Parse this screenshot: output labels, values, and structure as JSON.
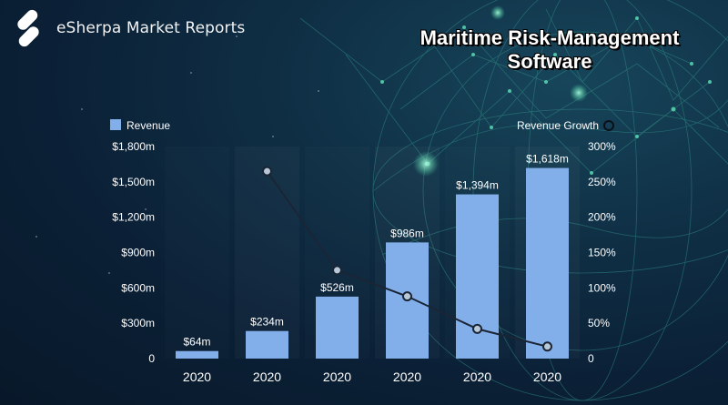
{
  "brand": {
    "name": "eSherpa Market Reports"
  },
  "page_title": {
    "line1": "Maritime Risk-Management",
    "line2": "Software"
  },
  "colors": {
    "bar": "#82aeea",
    "line": "#1a2535",
    "marker": "#b8c8d8",
    "accent_glow": "#7ff0c8"
  },
  "chart_data": {
    "type": "bar",
    "title": "Maritime Risk-Management Software",
    "categories": [
      "2020",
      "2020",
      "2020",
      "2020",
      "2020",
      "2020"
    ],
    "series": [
      {
        "name": "Revenue",
        "type": "bar",
        "axis": "left",
        "values": [
          64,
          234,
          526,
          986,
          1394,
          1618
        ],
        "labels": [
          "$64m",
          "$234m",
          "$526m",
          "$986m",
          "$1,394m",
          "$1,618m"
        ]
      },
      {
        "name": "Revenue Growth",
        "type": "line",
        "axis": "right",
        "values": [
          null,
          265,
          125,
          88,
          42,
          17
        ]
      }
    ],
    "y_left": {
      "lim": [
        0,
        1800
      ],
      "ticks": [
        0,
        300,
        600,
        900,
        1200,
        1500,
        1800
      ],
      "tick_labels": [
        "0",
        "$300m",
        "$600m",
        "$900m",
        "$1,200m",
        "$1,500m",
        "$1,800m"
      ]
    },
    "y_right": {
      "lim": [
        0,
        300
      ],
      "ticks": [
        0,
        50,
        100,
        150,
        200,
        250,
        300
      ],
      "tick_labels": [
        "0",
        "50%",
        "100%",
        "150%",
        "200%",
        "250%",
        "300%"
      ]
    },
    "legend": {
      "left": "Revenue",
      "right": "Revenue Growth",
      "placement": "top"
    },
    "grid": false
  }
}
